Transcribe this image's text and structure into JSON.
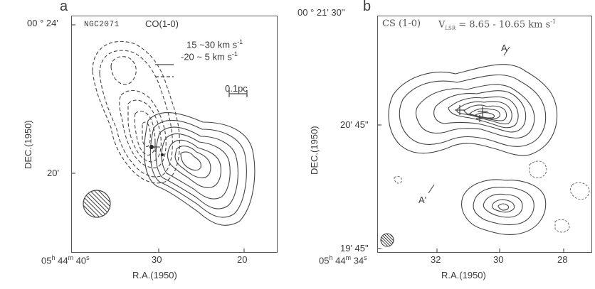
{
  "panel_a": {
    "letter": "a",
    "object_label": "NGC2071",
    "line_label": "CO(1-0)",
    "legend": {
      "solid_label": "15 ~30 km s",
      "solid_sup": "-1",
      "dashed_label": "-20 ~ 5 km s",
      "dashed_sup": "-1"
    },
    "scale_bar_label": "0.1pc",
    "dec_ticks": [
      "00 ° 24'",
      "20'"
    ],
    "ra_origin": {
      "h": "05",
      "m": "44",
      "s": "40"
    },
    "ra_ticks": [
      "30",
      "20"
    ],
    "xlabel": "R.A.(1950)",
    "ylabel": "DEC.(1950)"
  },
  "panel_b": {
    "letter": "b",
    "line_label": "CS (1-0)",
    "vlsr_label": "V",
    "vlsr_sub": "LSR",
    "vlsr_range": "= 8.65 - 10.65 km s",
    "vlsr_sup": "-1",
    "cut_label_a": "A",
    "cut_label_a2": "A'",
    "dec_ticks": [
      "00 ° 21' 30\"",
      "20' 45\"",
      "19' 45\""
    ],
    "ra_origin": {
      "h": "05",
      "m": "44",
      "s": "34"
    },
    "ra_ticks": [
      "32",
      "30",
      "28"
    ],
    "xlabel": "R.A.(1950)",
    "ylabel": "DEC.(1950)"
  }
}
